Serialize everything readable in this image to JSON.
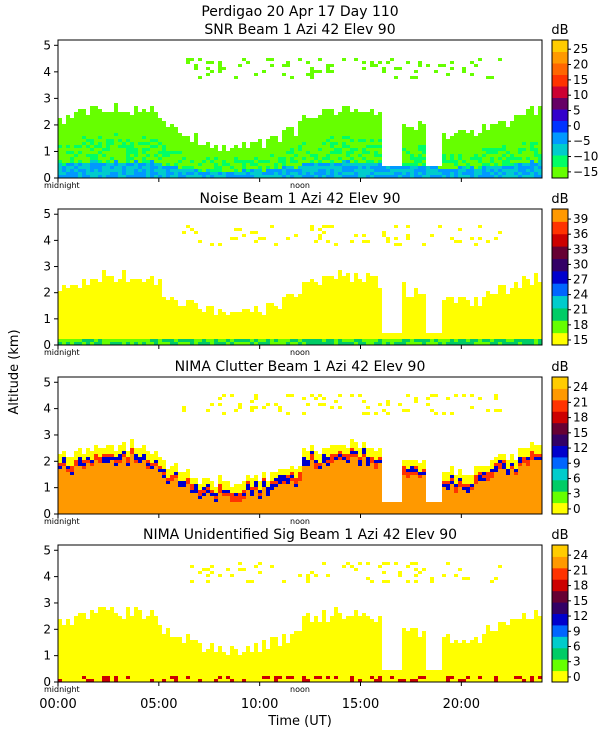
{
  "header": {
    "title": "Perdigao   20 Apr 17 Day 110"
  },
  "colors": {
    "background": "#ffffff",
    "scale_snr": [
      "#66ff00",
      "#00ff66",
      "#00cccc",
      "#0099ff",
      "#0033ff",
      "#3300cc",
      "#660066",
      "#cc0033",
      "#ff3300",
      "#ff6600",
      "#ff9900",
      "#ffcc00"
    ],
    "scale_noise": [
      "#ffff00",
      "#66ff00",
      "#00cc66",
      "#00cccc",
      "#0066ff",
      "#0000cc",
      "#330066",
      "#660033",
      "#cc0000",
      "#ff3300",
      "#ff9900"
    ],
    "scale_nima": [
      "#ffff00",
      "#66ff00",
      "#00cc66",
      "#00cccc",
      "#0066ff",
      "#0000cc",
      "#330066",
      "#660033",
      "#cc0000",
      "#ff3300",
      "#ff9900",
      "#ffcc00"
    ]
  },
  "axes": {
    "y_label": "Altitude (km)",
    "x_label": "Time (UT)",
    "x_ticks": [
      "00:00",
      "05:00",
      "10:00",
      "15:00",
      "20:00"
    ],
    "x_tick_hours": [
      0,
      5,
      10,
      15,
      20
    ],
    "x_range_hours": [
      0,
      24
    ],
    "y_ticks": [
      "0",
      "1",
      "2",
      "3",
      "4",
      "5"
    ],
    "y_range_km": [
      0,
      5.2
    ],
    "markers": {
      "midnight": "midnight",
      "noon": "noon"
    }
  },
  "chart_data": [
    {
      "type": "heatmap",
      "title": "SNR Beam 1 Azi  42 Elev 90",
      "unit": "dB",
      "colorbar_ticks": [
        "25",
        "20",
        "15",
        "10",
        "5",
        "0",
        "−5",
        "−10",
        "−15"
      ],
      "colorbar_range": [
        -17,
        28
      ],
      "x_range": [
        0,
        24
      ],
      "ylim": [
        0,
        5.2
      ]
    },
    {
      "type": "heatmap",
      "title": "Noise Beam 1 Azi  42 Elev 90",
      "unit": "dB",
      "colorbar_ticks": [
        "39",
        "36",
        "33",
        "30",
        "27",
        "24",
        "21",
        "18",
        "15"
      ],
      "colorbar_range": [
        14,
        41
      ],
      "x_range": [
        0,
        24
      ],
      "ylim": [
        0,
        5.2
      ]
    },
    {
      "type": "heatmap",
      "title": "NIMA Clutter Beam 1 Azi  42 Elev 90",
      "unit": "dB",
      "colorbar_ticks": [
        "24",
        "21",
        "18",
        "15",
        "12",
        "9",
        "6",
        "3",
        "0"
      ],
      "colorbar_range": [
        -1,
        26
      ],
      "x_range": [
        0,
        24
      ],
      "ylim": [
        0,
        5.2
      ]
    },
    {
      "type": "heatmap",
      "title": "NIMA Unidentified Sig Beam 1 Azi  42 Elev 90",
      "unit": "dB",
      "colorbar_ticks": [
        "24",
        "21",
        "18",
        "15",
        "12",
        "9",
        "6",
        "3",
        "0"
      ],
      "colorbar_range": [
        -1,
        26
      ],
      "x_range": [
        0,
        24
      ],
      "ylim": [
        0,
        5.2
      ]
    }
  ]
}
